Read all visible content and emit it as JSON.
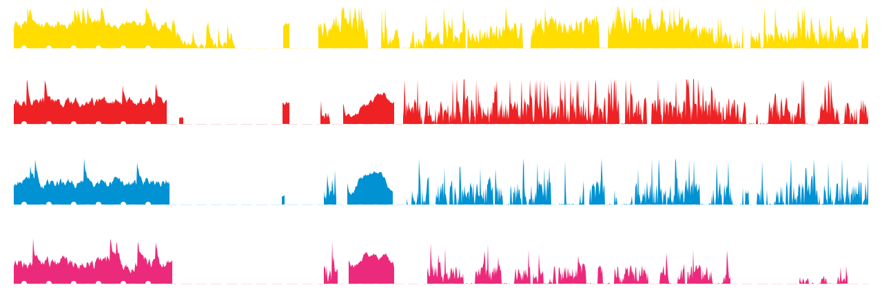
{
  "chart_data": {
    "type": "area",
    "title": "",
    "xlabel": "",
    "ylabel": "",
    "grid": false,
    "legend": "none",
    "x_range": [
      0,
      1240
    ],
    "y_range": [
      0,
      100
    ],
    "series": [
      {
        "color": "#FFDD00",
        "segments": [
          {
            "start": 0,
            "end": 322,
            "seed": 11,
            "base": 50,
            "var": 55,
            "smooth": 0.72,
            "spike": 0.04,
            "gap": 0.0,
            "profile": [
              [
                0,
                60
              ],
              [
                218,
                60
              ],
              [
                226,
                35
              ],
              [
                232,
                10
              ],
              [
                322,
                4
              ]
            ]
          },
          {
            "start": 391,
            "end": 400,
            "seed": 12,
            "base": 55,
            "var": 20,
            "smooth": 0.5,
            "spike": 0,
            "gap": 0
          },
          {
            "start": 442,
            "end": 1240,
            "seed": 13,
            "base": 32,
            "var": 70,
            "smooth": 0.45,
            "spike": 0.06,
            "gap": 0.12,
            "profile": [
              [
                442,
                40
              ],
              [
                480,
                70
              ],
              [
                535,
                25
              ],
              [
                620,
                20
              ],
              [
                780,
                55
              ],
              [
                960,
                60
              ],
              [
                1060,
                5
              ],
              [
                1100,
                30
              ],
              [
                1240,
                30
              ]
            ]
          }
        ]
      },
      {
        "color": "#EE2225",
        "segments": [
          {
            "start": 0,
            "end": 222,
            "seed": 21,
            "base": 48,
            "var": 55,
            "smooth": 0.75,
            "spike": 0.02,
            "gap": 0
          },
          {
            "start": 240,
            "end": 246,
            "seed": 22,
            "base": 15,
            "var": 10,
            "smooth": 0.5,
            "spike": 0,
            "gap": 0
          },
          {
            "start": 390,
            "end": 400,
            "seed": 23,
            "base": 45,
            "var": 15,
            "smooth": 0.5,
            "spike": 0,
            "gap": 0
          },
          {
            "start": 445,
            "end": 462,
            "seed": 24,
            "base": 20,
            "var": 35,
            "smooth": 0.3,
            "spike": 0.1,
            "gap": 0.4
          },
          {
            "start": 478,
            "end": 552,
            "seed": 25,
            "base": 55,
            "var": 45,
            "smooth": 0.8,
            "spike": 0,
            "gap": 0,
            "profile": [
              [
                478,
                10
              ],
              [
                515,
                55
              ],
              [
                530,
                70
              ],
              [
                552,
                40
              ]
            ]
          },
          {
            "start": 565,
            "end": 1240,
            "seed": 26,
            "base": 30,
            "var": 90,
            "smooth": 0.4,
            "spike": 0.07,
            "gap": 0.18
          }
        ]
      },
      {
        "color": "#0092D2",
        "segments": [
          {
            "start": 0,
            "end": 226,
            "seed": 31,
            "base": 48,
            "var": 50,
            "smooth": 0.75,
            "spike": 0.02,
            "gap": 0
          },
          {
            "start": 389,
            "end": 393,
            "seed": 32,
            "base": 20,
            "var": 10,
            "smooth": 0.5,
            "spike": 0,
            "gap": 0
          },
          {
            "start": 450,
            "end": 468,
            "seed": 33,
            "base": 22,
            "var": 45,
            "smooth": 0.3,
            "spike": 0.1,
            "gap": 0.35
          },
          {
            "start": 484,
            "end": 550,
            "seed": 34,
            "base": 55,
            "var": 50,
            "smooth": 0.8,
            "spike": 0,
            "gap": 0,
            "profile": [
              [
                484,
                10
              ],
              [
                500,
                60
              ],
              [
                515,
                75
              ],
              [
                535,
                55
              ],
              [
                550,
                20
              ]
            ]
          },
          {
            "start": 570,
            "end": 1240,
            "seed": 35,
            "base": 20,
            "var": 95,
            "smooth": 0.35,
            "spike": 0.06,
            "gap": 0.32
          }
        ]
      },
      {
        "color": "#EC2A7B",
        "segments": [
          {
            "start": 0,
            "end": 230,
            "seed": 41,
            "base": 45,
            "var": 65,
            "smooth": 0.72,
            "spike": 0.03,
            "gap": 0
          },
          {
            "start": 450,
            "end": 470,
            "seed": 42,
            "base": 20,
            "var": 60,
            "smooth": 0.3,
            "spike": 0.1,
            "gap": 0.3
          },
          {
            "start": 486,
            "end": 552,
            "seed": 43,
            "base": 55,
            "var": 50,
            "smooth": 0.8,
            "spike": 0,
            "gap": 0,
            "profile": [
              [
                486,
                20
              ],
              [
                510,
                65
              ],
              [
                540,
                55
              ],
              [
                552,
                30
              ]
            ]
          },
          {
            "start": 600,
            "end": 1040,
            "seed": 44,
            "base": 22,
            "var": 55,
            "smooth": 0.35,
            "spike": 0.03,
            "gap": 0.45
          },
          {
            "start": 1140,
            "end": 1210,
            "seed": 45,
            "base": 8,
            "var": 25,
            "smooth": 0.3,
            "spike": 0.05,
            "gap": 0.7
          }
        ]
      }
    ]
  }
}
